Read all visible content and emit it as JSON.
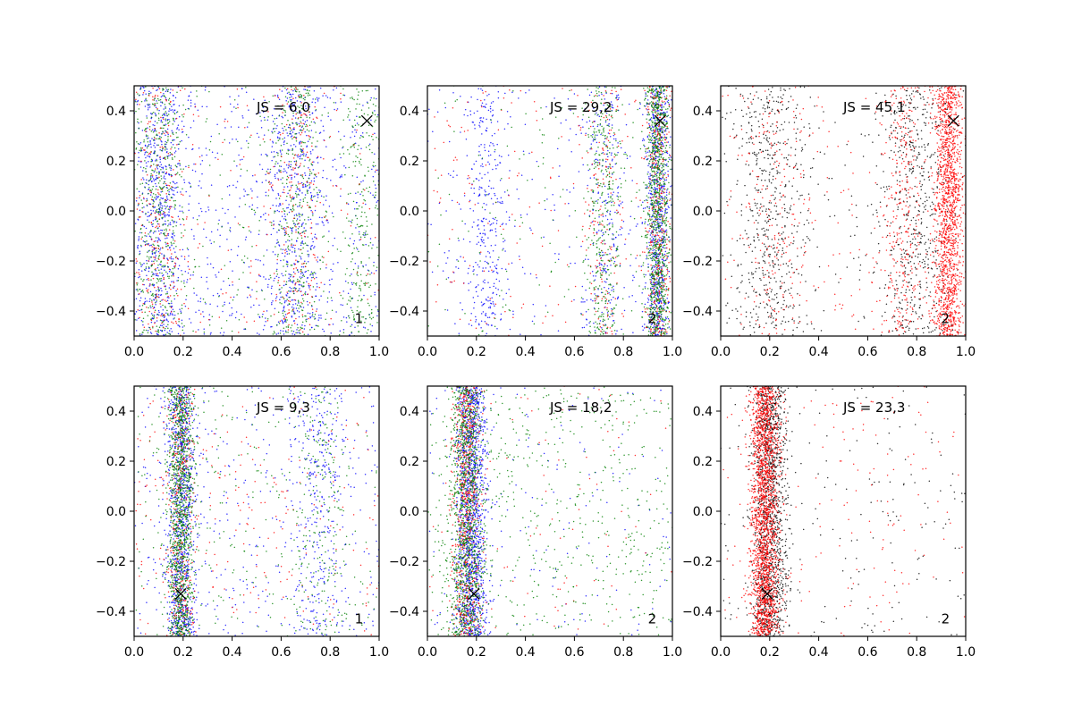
{
  "colors": {
    "blue": "#0000ff",
    "red": "#ff0000",
    "green": "#008000",
    "black": "#000000"
  },
  "chart_data": [
    {
      "type": "scatter",
      "grid": false,
      "xlim": [
        0.0,
        1.0
      ],
      "ylim": [
        -0.5,
        0.5
      ],
      "xticks": [
        "0.0",
        "0.2",
        "0.4",
        "0.6",
        "0.8",
        "1.0"
      ],
      "yticks": [
        "−0.4",
        "−0.2",
        "0.0",
        "0.2",
        "0.4"
      ],
      "annotation": "JS = 6,0",
      "corner_label": "1",
      "marker_x": {
        "x": 0.95,
        "y": 0.36
      },
      "series": [
        {
          "color": "blue",
          "n": 1700,
          "clusters": [
            {
              "cx": 0.1,
              "sx": 0.05,
              "w": 0.35
            },
            {
              "cx": 0.66,
              "sx": 0.06,
              "w": 0.25
            },
            {
              "uniform": true,
              "w": 0.4
            }
          ]
        },
        {
          "color": "green",
          "n": 1300,
          "clusters": [
            {
              "cx": 0.1,
              "sx": 0.05,
              "w": 0.35
            },
            {
              "cx": 0.66,
              "sx": 0.05,
              "w": 0.3
            },
            {
              "cx": 0.93,
              "sx": 0.04,
              "w": 0.15
            },
            {
              "uniform": true,
              "w": 0.2
            }
          ]
        },
        {
          "color": "red",
          "n": 550,
          "clusters": [
            {
              "cx": 0.1,
              "sx": 0.05,
              "w": 0.35
            },
            {
              "cx": 0.66,
              "sx": 0.05,
              "w": 0.3
            },
            {
              "uniform": true,
              "w": 0.35
            }
          ]
        }
      ]
    },
    {
      "type": "scatter",
      "grid": false,
      "xlim": [
        0.0,
        1.0
      ],
      "ylim": [
        -0.5,
        0.5
      ],
      "xticks": [
        "0.0",
        "0.2",
        "0.4",
        "0.6",
        "0.8",
        "1.0"
      ],
      "yticks": [
        "−0.4",
        "−0.2",
        "0.0",
        "0.2",
        "0.4"
      ],
      "annotation": "JS = 29,2",
      "corner_label": "2",
      "marker_x": {
        "x": 0.95,
        "y": 0.36
      },
      "series": [
        {
          "color": "blue",
          "n": 1500,
          "clusters": [
            {
              "cx": 0.94,
              "sx": 0.025,
              "w": 0.5
            },
            {
              "cx": 0.24,
              "sx": 0.04,
              "w": 0.2
            },
            {
              "cx": 0.72,
              "sx": 0.04,
              "w": 0.15
            },
            {
              "uniform": true,
              "w": 0.15
            }
          ]
        },
        {
          "color": "red",
          "n": 700,
          "clusters": [
            {
              "cx": 0.94,
              "sx": 0.025,
              "w": 0.55
            },
            {
              "cx": 0.72,
              "sx": 0.04,
              "w": 0.2
            },
            {
              "uniform": true,
              "w": 0.25
            }
          ]
        },
        {
          "color": "green",
          "n": 1500,
          "clusters": [
            {
              "cx": 0.94,
              "sx": 0.025,
              "w": 0.65
            },
            {
              "cx": 0.72,
              "sx": 0.035,
              "w": 0.25
            },
            {
              "uniform": true,
              "w": 0.1
            }
          ]
        }
      ]
    },
    {
      "type": "scatter",
      "grid": false,
      "xlim": [
        0.0,
        1.0
      ],
      "ylim": [
        -0.5,
        0.5
      ],
      "xticks": [
        "0.0",
        "0.2",
        "0.4",
        "0.6",
        "0.8",
        "1.0"
      ],
      "yticks": [
        "−0.4",
        "−0.2",
        "0.0",
        "0.2",
        "0.4"
      ],
      "annotation": "JS = 45,1",
      "corner_label": "2",
      "marker_x": {
        "x": 0.95,
        "y": 0.36
      },
      "series": [
        {
          "color": "black",
          "n": 1200,
          "clusters": [
            {
              "cx": 0.2,
              "sx": 0.08,
              "w": 0.45
            },
            {
              "cx": 0.8,
              "sx": 0.07,
              "w": 0.4
            },
            {
              "uniform": true,
              "w": 0.15
            }
          ]
        },
        {
          "color": "red",
          "n": 2200,
          "clusters": [
            {
              "cx": 0.93,
              "sx": 0.03,
              "w": 0.7
            },
            {
              "cx": 0.74,
              "sx": 0.04,
              "w": 0.15
            },
            {
              "cx": 0.22,
              "sx": 0.07,
              "w": 0.08
            },
            {
              "uniform": true,
              "w": 0.07
            }
          ]
        }
      ]
    },
    {
      "type": "scatter",
      "grid": false,
      "xlim": [
        0.0,
        1.0
      ],
      "ylim": [
        -0.5,
        0.5
      ],
      "xticks": [
        "0.0",
        "0.2",
        "0.4",
        "0.6",
        "0.8",
        "1.0"
      ],
      "yticks": [
        "−0.4",
        "−0.2",
        "0.0",
        "0.2",
        "0.4"
      ],
      "annotation": "JS = 9,3",
      "corner_label": "1",
      "marker_x": {
        "x": 0.19,
        "y": -0.33
      },
      "series": [
        {
          "color": "blue",
          "n": 1600,
          "clusters": [
            {
              "cx": 0.19,
              "sx": 0.03,
              "w": 0.6
            },
            {
              "cx": 0.75,
              "sx": 0.06,
              "w": 0.15
            },
            {
              "uniform": true,
              "w": 0.25
            }
          ]
        },
        {
          "color": "red",
          "n": 600,
          "clusters": [
            {
              "cx": 0.19,
              "sx": 0.03,
              "w": 0.6
            },
            {
              "uniform": true,
              "w": 0.4
            }
          ]
        },
        {
          "color": "green",
          "n": 1600,
          "clusters": [
            {
              "cx": 0.19,
              "sx": 0.028,
              "w": 0.75
            },
            {
              "cx": 0.75,
              "sx": 0.06,
              "w": 0.1
            },
            {
              "uniform": true,
              "w": 0.15
            }
          ]
        }
      ]
    },
    {
      "type": "scatter",
      "grid": false,
      "xlim": [
        0.0,
        1.0
      ],
      "ylim": [
        -0.5,
        0.5
      ],
      "xticks": [
        "0.0",
        "0.2",
        "0.4",
        "0.6",
        "0.8",
        "1.0"
      ],
      "yticks": [
        "−0.4",
        "−0.2",
        "0.0",
        "0.2",
        "0.4"
      ],
      "annotation": "JS = 18,2",
      "corner_label": "2",
      "marker_x": {
        "x": 0.19,
        "y": -0.33
      },
      "series": [
        {
          "color": "blue",
          "n": 1500,
          "clusters": [
            {
              "cx": 0.18,
              "sx": 0.03,
              "w": 0.9
            },
            {
              "uniform": true,
              "w": 0.1
            }
          ]
        },
        {
          "color": "red",
          "n": 800,
          "clusters": [
            {
              "cx": 0.16,
              "sx": 0.028,
              "w": 0.9
            },
            {
              "uniform": true,
              "w": 0.1
            }
          ]
        },
        {
          "color": "green",
          "n": 1700,
          "clusters": [
            {
              "cx": 0.16,
              "sx": 0.035,
              "w": 0.65
            },
            {
              "uniform": true,
              "w": 0.35
            }
          ]
        }
      ]
    },
    {
      "type": "scatter",
      "grid": false,
      "xlim": [
        0.0,
        1.0
      ],
      "ylim": [
        -0.5,
        0.5
      ],
      "xticks": [
        "0.0",
        "0.2",
        "0.4",
        "0.6",
        "0.8",
        "1.0"
      ],
      "yticks": [
        "−0.4",
        "−0.2",
        "0.0",
        "0.2",
        "0.4"
      ],
      "annotation": "JS = 23,3",
      "corner_label": "2",
      "marker_x": {
        "x": 0.19,
        "y": -0.33
      },
      "series": [
        {
          "color": "black",
          "n": 1500,
          "clusters": [
            {
              "cx": 0.2,
              "sx": 0.035,
              "w": 0.85
            },
            {
              "uniform": true,
              "w": 0.15
            }
          ]
        },
        {
          "color": "red",
          "n": 2200,
          "clusters": [
            {
              "cx": 0.18,
              "sx": 0.03,
              "w": 0.92
            },
            {
              "uniform": true,
              "w": 0.08
            }
          ]
        }
      ]
    }
  ]
}
